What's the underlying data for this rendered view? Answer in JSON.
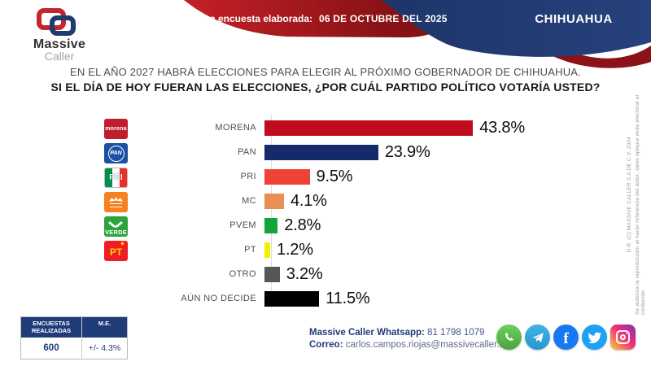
{
  "header": {
    "banner_label": "Última encuesta elaborada:",
    "banner_date": "06 DE OCTUBRE DEL 2025",
    "state": "CHIHUAHUA",
    "logo_word1": "Massive",
    "logo_word2": "Caller"
  },
  "question": {
    "line1": "EN EL AÑO 2027 HABRÁ ELECCIONES PARA ELEGIR AL PRÓXIMO GOBERNADOR DE CHIHUAHUA.",
    "line2": "SI EL DÍA DE HOY FUERAN LAS ELECCIONES, ¿POR CUÁL PARTIDO POLÍTICO VOTARÍA USTED?"
  },
  "chart_data": {
    "type": "bar",
    "orientation": "horizontal",
    "title": "",
    "categories": [
      "MORENA",
      "PAN",
      "PRI",
      "MC",
      "PVEM",
      "PT",
      "OTRO",
      "AÚN NO DECIDE"
    ],
    "values": [
      43.8,
      23.9,
      9.5,
      4.1,
      2.8,
      1.2,
      3.2,
      11.5
    ],
    "value_labels": [
      "43.8%",
      "23.9%",
      "9.5%",
      "4.1%",
      "2.8%",
      "1.2%",
      "3.2%",
      "11.5%"
    ],
    "bar_colors": [
      "#c00d1e",
      "#152a69",
      "#ef4136",
      "#e88f53",
      "#13a53b",
      "#f7ef00",
      "#575756",
      "#000000"
    ],
    "xlim": [
      0,
      50
    ],
    "grid": false,
    "legend": false,
    "value_label_position": "end-of-bar"
  },
  "party_logos": {
    "morena": {
      "text": "morena"
    },
    "pan": {
      "text": "PAN"
    },
    "pri": {
      "text": "PRI"
    },
    "mc": {
      "text": ""
    },
    "verde": {
      "text": "VERDE"
    },
    "pt": {
      "text": "PT",
      "star": "★"
    }
  },
  "stats": {
    "col1_header": "ENCUESTAS REALIZADAS",
    "col2_header": "M.E.",
    "col1_value": "600",
    "col2_value": "+/- 4.3%"
  },
  "contact": {
    "whatsapp_label": "Massive Caller Whatsapp:",
    "whatsapp_number": " 81 1798 1079",
    "email_label": "Correo:",
    "email_value": " carlos.campos.riojas@massivecaller.com"
  },
  "socials": [
    "whatsapp-icon",
    "telegram-icon",
    "facebook-icon",
    "twitter-icon",
    "instagram-icon"
  ],
  "facebook_glyph": "f",
  "copyright": {
    "line1": "D.R. (C) MASSIVE CALLER S.A DE C.V.  2024",
    "line2": "Se autoriza la reproducción al hacer referencia del autor, salvo aplique veda electoral al contenido."
  },
  "colors": {
    "banner_red_start": "#c42127",
    "banner_red_end": "#7a1013",
    "banner_blue": "#203a72",
    "table_header_blue": "#1f3c78",
    "whatsapp_green": "#5bb54d",
    "telegram_blue": "#32a8dd",
    "facebook_blue": "#1877f2",
    "twitter_blue": "#1da1f2"
  }
}
